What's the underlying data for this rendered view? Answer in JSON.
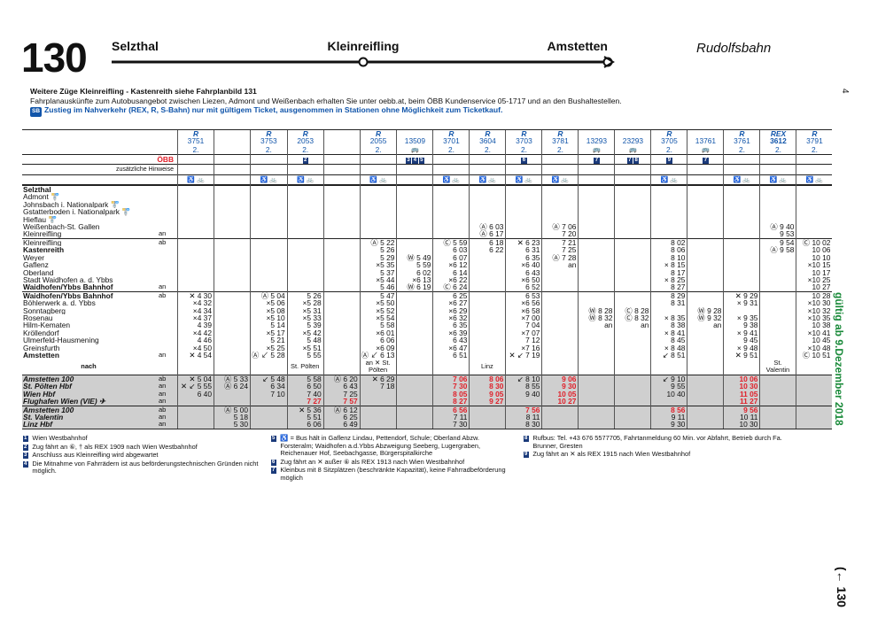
{
  "header": {
    "number": "130",
    "stations": [
      "Selzthal",
      "Kleinreifling",
      "Amstetten"
    ],
    "name": "Rudolfsbahn",
    "page": "4"
  },
  "notes": [
    "Weitere Züge Kleinreifling - Kastenreith siehe Fahrplanbild 131",
    "Fahrplanauskünfte zum Autobusangebot zwischen Liezen, Admont und Weißenbach erhalten Sie unter oebb.at, beim ÖBB Kundenservice 05-1717 und an den Bushaltestellen.",
    "Zustieg im Nahverkehr (REX, R, S-Bahn) nur mit gültigem Ticket, ausgenommen in Stationen ohne Möglichkeit zum Ticketkauf."
  ],
  "sb": "SB",
  "operator": "ÖBB",
  "hints": "zusätzliche Hinweise",
  "table": {
    "trains": [
      {
        "type": "R",
        "number": "3751",
        "class": "2.",
        "bike": true
      },
      {
        "bike": false
      },
      {
        "type": "R",
        "number": "3753",
        "class": "2.",
        "bike": true
      },
      {
        "type": "R",
        "number": "2053",
        "class": "2.",
        "marks": [
          "2"
        ],
        "bike": true
      },
      {
        "bike": false
      },
      {
        "type": "R",
        "number": "2055",
        "class": "2.",
        "bike": true
      },
      {
        "number": "13509",
        "bus": "🚌",
        "marks": [
          "3",
          "4",
          "5"
        ]
      },
      {
        "type": "R",
        "number": "3701",
        "class": "2.",
        "bike": true
      },
      {
        "type": "R",
        "number": "3604",
        "class": "2.",
        "bike": true
      },
      {
        "type": "R",
        "number": "3703",
        "class": "2.",
        "marks": [
          "6"
        ],
        "bike": true
      },
      {
        "type": "R",
        "number": "3781",
        "class": "2.",
        "bike": true
      },
      {
        "number": "13293",
        "bus": "🚌",
        "marks": [
          "7"
        ]
      },
      {
        "number": "23293",
        "bus": "🚌",
        "marks": [
          "7",
          "8"
        ]
      },
      {
        "type": "R",
        "number": "3705",
        "class": "2.",
        "marks": [
          "9"
        ],
        "bike": true
      },
      {
        "number": "13761",
        "bus": "🚌",
        "marks": [
          "7"
        ]
      },
      {
        "type": "R",
        "number": "3761",
        "class": "2.",
        "bike": true
      },
      {
        "type": "REX",
        "number": "3612",
        "class": "2.",
        "bike": true
      },
      {
        "type": "R",
        "number": "3791",
        "class": "2.",
        "bike": true
      }
    ],
    "sections": [
      {
        "rows": [
          {
            "station": "Selzthal",
            "bold": true
          },
          {
            "station": "Admont 🚏"
          },
          {
            "station": "Johnsbach i. Nationalpark 🚏"
          },
          {
            "station": "Gstatterboden i. Nationalpark 🚏"
          },
          {
            "station": "Hieflau 🚏"
          },
          {
            "station": "Weißenbach-St. Gallen",
            "cells": {
              "8": "Ⓐ 6 03",
              "10": "Ⓐ 7 06",
              "16": "Ⓐ 9 40"
            }
          },
          {
            "station": "Kleinreifling",
            "dir": "an",
            "cells": {
              "8": "Ⓐ 6 17",
              "10": "7 20",
              "16": "9 53"
            }
          }
        ]
      },
      {
        "rows": [
          {
            "station": "Kleinreifling",
            "dir": "ab",
            "cells": {
              "5": "Ⓐ 5 22",
              "7": "Ⓒ 5 59",
              "8": "6 18",
              "9": "✕ 6 23",
              "10": "7 21",
              "13": "8 02",
              "16": "9 54",
              "17": "Ⓒ 10 02"
            }
          },
          {
            "station": "Kastenreith",
            "bold": true,
            "cells": {
              "5": "5 26",
              "7": "6 03",
              "8": "6 22",
              "9": "6 31",
              "10": "7 25",
              "13": "8 06",
              "16": "Ⓐ 9 58",
              "17": "10 06"
            }
          },
          {
            "station": "Weyer",
            "cells": {
              "5": "5 29",
              "6": "Ⓦ 5 49",
              "7": "6 07",
              "9": "6 35",
              "10": "Ⓐ 7 28",
              "13": "8 10",
              "17": "10 10"
            }
          },
          {
            "station": "Gaflenz",
            "cells": {
              "5": "×5 35",
              "6": "5 59",
              "7": "×6 12",
              "9": "×6 40",
              "10": "an",
              "13": "× 8 15",
              "17": "×10 15"
            }
          },
          {
            "station": "Oberland",
            "cells": {
              "5": "5 37",
              "6": "6 02",
              "7": "6 14",
              "9": "6 43",
              "13": "8 17",
              "17": "10 17"
            }
          },
          {
            "station": "Stadt Waidhofen a. d. Ybbs",
            "cells": {
              "5": "×5 44",
              "6": "×6 13",
              "7": "×6 22",
              "9": "×6 50",
              "13": "× 8 25",
              "17": "×10 25"
            }
          },
          {
            "station": "Waidhofen/Ybbs Bahnhof",
            "dir": "an",
            "bold": true,
            "cells": {
              "5": "5 46",
              "6": "Ⓦ 6 19",
              "7": "Ⓒ 6 24",
              "9": "6 52",
              "13": "8 27",
              "17": "10 27"
            }
          }
        ]
      },
      {
        "rows": [
          {
            "station": "Waidhofen/Ybbs Bahnhof",
            "dir": "ab",
            "bold": true,
            "cells": {
              "0": "✕ 4 30",
              "2": "Ⓐ 5 04",
              "3": "5 26",
              "5": "5 47",
              "7": "6 25",
              "9": "6 53",
              "13": "8 29",
              "15": "✕ 9 29",
              "17": "10 28"
            }
          },
          {
            "station": "Böhlerwerk a. d. Ybbs",
            "cells": {
              "0": "×4 32",
              "2": "×5 06",
              "3": "×5 28",
              "5": "×5 50",
              "7": "×6 27",
              "9": "×6 56",
              "13": "8 31",
              "15": "× 9 31",
              "17": "×10 30"
            }
          },
          {
            "station": "Sonntagberg",
            "cells": {
              "0": "×4 34",
              "2": "×5 08",
              "3": "×5 31",
              "5": "×5 52",
              "7": "×6 29",
              "9": "×6 58",
              "11": "Ⓦ 8 28",
              "12": "Ⓒ 8 28",
              "14": "Ⓦ 9 28",
              "17": "×10 32"
            }
          },
          {
            "station": "Rosenau",
            "cells": {
              "0": "×4 37",
              "2": "×5 10",
              "3": "×5 33",
              "5": "×5 54",
              "7": "×6 32",
              "9": "×7 00",
              "11": "Ⓦ 8 32",
              "12": "Ⓒ 8 32",
              "13": "× 8 35",
              "14": "Ⓦ 9 32",
              "15": "× 9 35",
              "17": "×10 35"
            }
          },
          {
            "station": "Hilm-Kematen",
            "cells": {
              "0": "4 39",
              "2": "5 14",
              "3": "5 39",
              "5": "5 58",
              "7": "6 35",
              "9": "7 04",
              "11": "an",
              "12": "an",
              "13": "8 38",
              "14": "an",
              "15": "9 38",
              "17": "10 38"
            }
          },
          {
            "station": "Kröllendorf",
            "cells": {
              "0": "×4 42",
              "2": "×5 17",
              "3": "×5 42",
              "5": "×6 01",
              "7": "×6 39",
              "9": "×7 07",
              "13": "× 8 41",
              "15": "× 9 41",
              "17": "×10 41"
            }
          },
          {
            "station": "Ulmerfeld-Hausmening",
            "cells": {
              "0": "4 46",
              "2": "5 21",
              "3": "5 48",
              "5": "6 06",
              "7": "6 43",
              "9": "7 12",
              "13": "8 45",
              "15": "9 45",
              "17": "10 45"
            }
          },
          {
            "station": "Greinsfurth",
            "cells": {
              "0": "×4 50",
              "2": "×5 25",
              "3": "×5 51",
              "5": "×6 09",
              "7": "×6 47",
              "9": "×7 16",
              "13": "× 8 48",
              "15": "× 9 48",
              "17": "×10 48"
            }
          },
          {
            "station": "Amstetten",
            "dir": "an",
            "bold": true,
            "cells": {
              "0": "✕ 4 54",
              "2": "Ⓐ ↙ 5 28",
              "3": "5 55",
              "5": "Ⓐ ↙ 6 13",
              "7": "6 51",
              "9": "✕ ↙ 7 19",
              "13": "↙ 8 51",
              "15": "✕ 9 51",
              "17": "Ⓒ 10 51"
            }
          },
          {
            "station": "nach",
            "nach": true,
            "cells": {
              "3": "St. Pölten",
              "5": "an ✕ St. Pölten",
              "8": "Linz",
              "16": "St. Valentin"
            }
          }
        ]
      },
      {
        "shade": true,
        "rows": [
          {
            "station": "Amstetten  100",
            "dir": "ab",
            "conn": true,
            "cells": {
              "0": "✕ 5 04",
              "1": "Ⓐ 5 33",
              "2": "↙ 5 48",
              "3": "5 58",
              "4": "Ⓐ 6 20",
              "5": "✕ 6 29",
              "7": {
                "red": "7 06"
              },
              "8": {
                "red": "8 06"
              },
              "9": "↙ 8 10",
              "10": {
                "red": "9 06"
              },
              "13": "↙ 9 10",
              "15": {
                "red": "10 06"
              }
            }
          },
          {
            "station": "St. Pölten Hbf",
            "dir": "an",
            "conn": true,
            "cells": {
              "0": "✕ ↙ 5 55",
              "1": "Ⓐ 6 24",
              "2": "6 34",
              "3": "6 50",
              "4": "6 43",
              "5": "7 18",
              "7": {
                "red": "7 30"
              },
              "8": {
                "red": "8 30"
              },
              "9": "8 55",
              "10": {
                "red": "9 30"
              },
              "13": "9 55",
              "15": {
                "red": "10 30"
              }
            }
          },
          {
            "station": "Wien Hbf",
            "dir": "an",
            "conn": true,
            "cells": {
              "0": "6 40",
              "2": "7 10",
              "3": "7 40",
              "4": "7 25",
              "7": {
                "red": "8 05"
              },
              "8": {
                "red": "9 05"
              },
              "9": "9 40",
              "10": {
                "red": "10 05"
              },
              "13": "10 40",
              "15": {
                "red": "11 05"
              }
            }
          },
          {
            "station": "Flughafen Wien (VIE) ✈",
            "dir": "an",
            "conn": true,
            "cells": {
              "3": {
                "red": "7 27"
              },
              "4": {
                "red": "7 57"
              },
              "7": {
                "red": "8 27"
              },
              "8": {
                "red": "9 27"
              },
              "10": {
                "red": "10 27"
              },
              "15": {
                "red": "11 27"
              }
            }
          }
        ]
      },
      {
        "shade": true,
        "rows": [
          {
            "station": "Amstetten  100",
            "dir": "ab",
            "conn": true,
            "cells": {
              "1": "Ⓐ 5 00",
              "3": "✕ 5 36",
              "4": "Ⓐ 6 12",
              "7": {
                "red": "6 56"
              },
              "9": {
                "red": "7 56"
              },
              "13": {
                "red": "8 56"
              },
              "15": {
                "red": "9 56"
              }
            }
          },
          {
            "station": "St. Valentin",
            "dir": "an",
            "conn": true,
            "cells": {
              "1": "5 18",
              "3": "5 51",
              "4": "6 25",
              "7": "7 11",
              "9": "8 11",
              "13": "9 11",
              "15": "10 11"
            }
          },
          {
            "station": "Linz Hbf",
            "dir": "an",
            "conn": true,
            "cells": {
              "1": "5 30",
              "3": "6 06",
              "4": "6 49",
              "7": "7 30",
              "9": "8 30",
              "13": "9 30",
              "15": "10 30"
            }
          }
        ]
      }
    ]
  },
  "footnotes": [
    [
      {
        "n": "1",
        "text": "Wien Westbahnhof"
      },
      {
        "n": "2",
        "text": "Zug fährt an ⑥, † als REX 1909 nach Wien Westbahnhof"
      },
      {
        "n": "3",
        "text": "Anschluss aus Kleinreifling wird abgewartet"
      },
      {
        "n": "4",
        "text": "Die Mitnahme von Fahrrädern ist aus beförderungstechnischen Gründen nicht möglich."
      }
    ],
    [
      {
        "n": "5",
        "text": "♿ = Bus hält in Gaflenz Lindau, Pettendorf, Schule; Oberland Abzw. Forsteralm; Waidhofen a.d.Ybbs Abzweigung Seeberg, Lugergraben, Reichenauer Hof, Seebachgasse, Bürgerspitalkirche"
      },
      {
        "n": "6",
        "text": "Zug fährt an ✕ außer ⑥ als REX 1913 nach Wien Westbahnhof"
      },
      {
        "n": "7",
        "text": "Kleinbus mit 8 Sitzplätzen (beschränkte Kapazität), keine Fahrradbeförderung möglich"
      }
    ],
    [
      {
        "n": "8",
        "text": "Rufbus: Tel. +43 676 5577705, Fahrtanmeldung 60 Min. vor Abfahrt, Betrieb durch Fa. Brunner, Gresten"
      },
      {
        "n": "9",
        "text": "Zug fährt an ✕ als REX 1915 nach Wien Westbahnhof"
      }
    ]
  ],
  "validity": "gültig ab 9.Dezember 2018",
  "backref": "(← 130"
}
